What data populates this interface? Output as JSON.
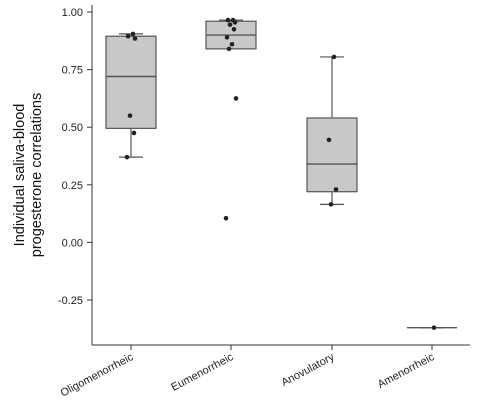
{
  "chart_data": {
    "type": "box",
    "ylabel": "Individual saliva-blood\nprogesterone correlations",
    "ylim": [
      -0.37,
      1.02
    ],
    "yticks": [
      1.0,
      0.75,
      0.5,
      0.25,
      0.0,
      -0.25
    ],
    "ytick_labels": [
      "1.00",
      "0.75",
      "0.50",
      "0.25",
      "0.00",
      "-0.25"
    ],
    "categories": [
      "Oligomenorrheic",
      "Eumenorrheic",
      "Anovulatory",
      "Amenorrheic"
    ],
    "box_color": "#c8c8c8",
    "groups": [
      {
        "category": "Oligomenorrheic",
        "min": 0.37,
        "q1": 0.495,
        "median": 0.72,
        "q3": 0.895,
        "max": 0.905,
        "points": [
          0.905,
          0.895,
          0.885,
          0.55,
          0.475,
          0.37
        ]
      },
      {
        "category": "Eumenorrheic",
        "min": 0.84,
        "q1": 0.84,
        "median": 0.9,
        "q3": 0.96,
        "max": 0.965,
        "points": [
          0.965,
          0.965,
          0.955,
          0.945,
          0.925,
          0.89,
          0.86,
          0.84,
          0.625,
          0.105
        ]
      },
      {
        "category": "Anovulatory",
        "min": 0.165,
        "q1": 0.22,
        "median": 0.34,
        "q3": 0.54,
        "max": 0.805,
        "points": [
          0.805,
          0.445,
          0.23,
          0.165
        ]
      },
      {
        "category": "Amenorrheic",
        "min": -0.37,
        "q1": -0.37,
        "median": -0.37,
        "q3": -0.37,
        "max": -0.37,
        "points": [
          -0.37
        ]
      }
    ]
  }
}
